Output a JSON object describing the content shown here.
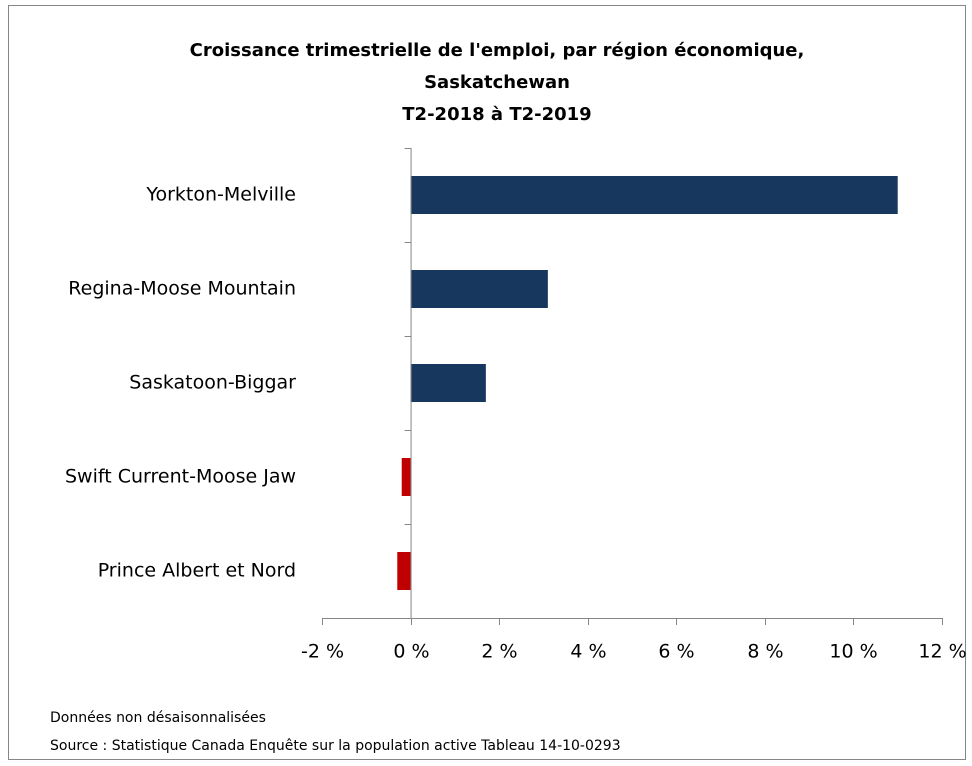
{
  "chart_data": {
    "type": "bar",
    "orientation": "horizontal",
    "title": [
      "Croissance trimestrielle de l'emploi, par région économique,",
      "Saskatchewan",
      "T2-2018 à T2-2019"
    ],
    "categories": [
      "Yorkton-Melville",
      "Regina-Moose Mountain",
      "Saskatoon-Biggar",
      "Swift Current-Moose Jaw",
      "Prince Albert et Nord"
    ],
    "values": [
      11.0,
      3.1,
      1.7,
      -0.2,
      -0.3
    ],
    "colors": [
      "#17375e",
      "#17375e",
      "#17375e",
      "#c00000",
      "#c00000"
    ],
    "xlim": [
      -2,
      12
    ],
    "xticks": [
      {
        "value": -2,
        "label": "-2 %"
      },
      {
        "value": 0,
        "label": "0 %"
      },
      {
        "value": 2,
        "label": "2 %"
      },
      {
        "value": 4,
        "label": "4 %"
      },
      {
        "value": 6,
        "label": "6 %"
      },
      {
        "value": 8,
        "label": "8 %"
      },
      {
        "value": 10,
        "label": "10 %"
      },
      {
        "value": 12,
        "label": "12 %"
      }
    ],
    "grid": false,
    "notes": [
      "Données non désaisonnalisées",
      "Source : Statistique Canada Enquête sur la population active Tableau 14-10-0293"
    ]
  }
}
